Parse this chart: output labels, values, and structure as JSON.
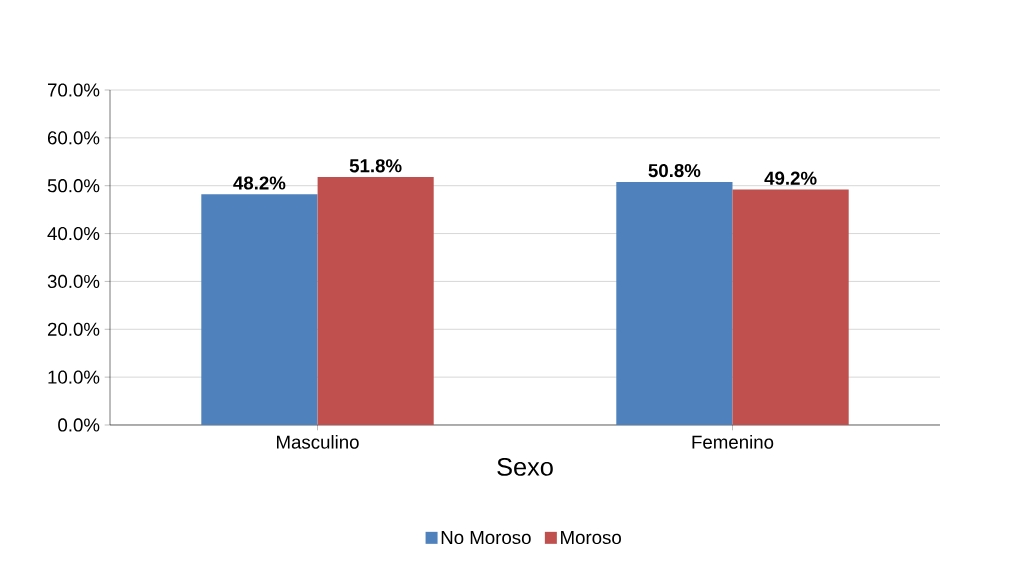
{
  "chart_data": {
    "type": "bar",
    "xlabel": "Sexo",
    "categories": [
      "Masculino",
      "Femenino"
    ],
    "series": [
      {
        "name": "No Moroso",
        "color": "#4f81bd",
        "values": [
          48.2,
          50.8
        ],
        "value_labels": [
          "48.2%",
          "50.8%"
        ]
      },
      {
        "name": "Moroso",
        "color": "#c0504d",
        "values": [
          51.8,
          49.2
        ],
        "value_labels": [
          "51.8%",
          "49.2%"
        ]
      }
    ],
    "ylim": [
      0,
      70
    ],
    "yticks": [
      {
        "value": 0,
        "label": "0.0%"
      },
      {
        "value": 10,
        "label": "10.0%"
      },
      {
        "value": 20,
        "label": "20.0%"
      },
      {
        "value": 30,
        "label": "30.0%"
      },
      {
        "value": 40,
        "label": "40.0%"
      },
      {
        "value": 50,
        "label": "50.0%"
      },
      {
        "value": 60,
        "label": "60.0%"
      },
      {
        "value": 70,
        "label": "70.0%"
      }
    ],
    "grid": "y",
    "legend": "bottom"
  }
}
